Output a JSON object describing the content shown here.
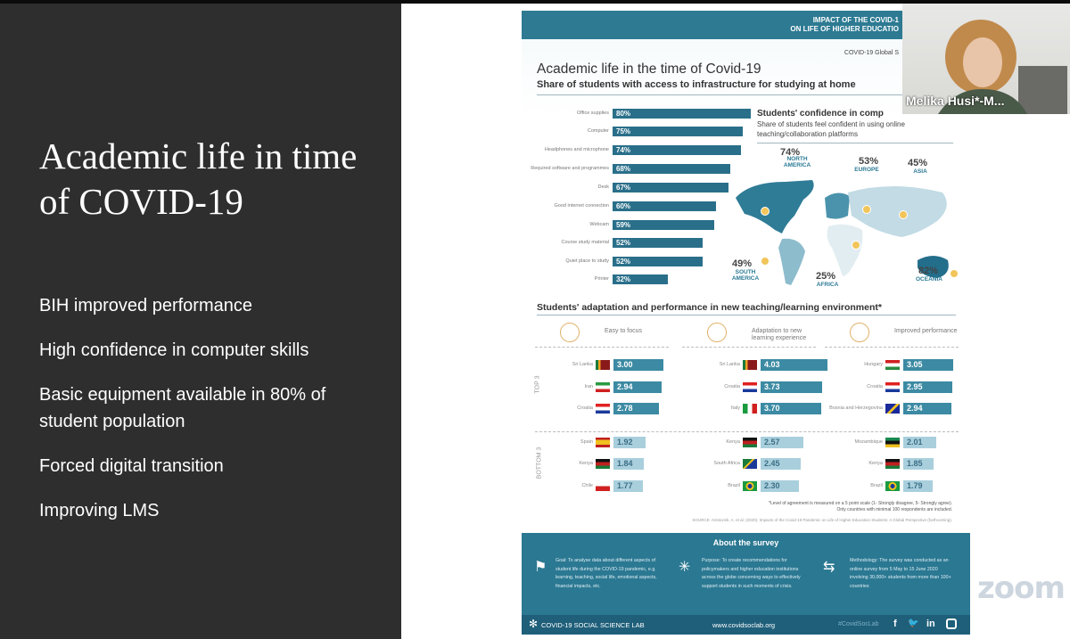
{
  "slide": {
    "title": "Academic life in time of COVID-19",
    "bullets": [
      "BIH improved performance",
      "High confidence in computer skills",
      "Basic equipment available in 80% of student population",
      "Forced digital transition",
      "Improving LMS"
    ]
  },
  "infographic": {
    "header_line1": "IMPACT OF THE COVID-1",
    "header_line2": "ON LIFE OF HIGHER EDUCATIO",
    "survey_tag": "COVID-19 Global S",
    "title": "Academic life in the time of Covid-19",
    "subtitle": "Share of students with access to infrastructure for studying at home",
    "bar_color": "#2a6f8a",
    "infrastructure": [
      {
        "label": "Office supplies",
        "value": 80
      },
      {
        "label": "Computer",
        "value": 75
      },
      {
        "label": "Headphones and microphone",
        "value": 74
      },
      {
        "label": "Required software and programmes",
        "value": 68
      },
      {
        "label": "Desk",
        "value": 67
      },
      {
        "label": "Good internet connection",
        "value": 60
      },
      {
        "label": "Webcam",
        "value": 59
      },
      {
        "label": "Course study material",
        "value": 52
      },
      {
        "label": "Quiet place to study",
        "value": 52
      },
      {
        "label": "Printer",
        "value": 32
      }
    ],
    "confidence_title": "Students' confidence in comp",
    "confidence_sub": "Share of students feel confident in using online teaching/collaboration platforms",
    "regions": [
      {
        "name": "NORTH AMERICA",
        "pct": "74%",
        "rank": "2"
      },
      {
        "name": "EUROPE",
        "pct": "53%",
        "rank": "3"
      },
      {
        "name": "ASIA",
        "pct": "45%",
        "rank": "5"
      },
      {
        "name": "SOUTH AMERICA",
        "pct": "49%",
        "rank": "4"
      },
      {
        "name": "AFRICA",
        "pct": "25%",
        "rank": "6"
      },
      {
        "name": "OCEANIA",
        "pct": "82%",
        "rank": "1"
      }
    ],
    "adapt_title": "Students' adaptation and performance in new teaching/learning environment*",
    "top_label": "TOP 3",
    "bottom_label": "BOTTOM 3",
    "columns": [
      {
        "title": "Easy to focus",
        "icon": "head-target-icon",
        "top": [
          {
            "country": "Sri Lanka",
            "value": "3.00"
          },
          {
            "country": "Iran",
            "value": "2.94"
          },
          {
            "country": "Croatia",
            "value": "2.78"
          }
        ],
        "bottom": [
          {
            "country": "Spain",
            "value": "1.92"
          },
          {
            "country": "Kenya",
            "value": "1.84"
          },
          {
            "country": "Chile",
            "value": "1.77"
          }
        ]
      },
      {
        "title": "Adaptation to new learning experience",
        "icon": "person-network-icon",
        "top": [
          {
            "country": "Sri Lanka",
            "value": "4.03"
          },
          {
            "country": "Croatia",
            "value": "3.73"
          },
          {
            "country": "Italy",
            "value": "3.70"
          }
        ],
        "bottom": [
          {
            "country": "Kenya",
            "value": "2.57"
          },
          {
            "country": "South Africa",
            "value": "2.45"
          },
          {
            "country": "Brazil",
            "value": "2.30"
          }
        ]
      },
      {
        "title": "Improved performance",
        "icon": "gauge-icon",
        "top": [
          {
            "country": "Hungary",
            "value": "3.05"
          },
          {
            "country": "Croatia",
            "value": "2.95"
          },
          {
            "country": "Bosnia and Herzegovina",
            "value": "2.94"
          }
        ],
        "bottom": [
          {
            "country": "Mozambique",
            "value": "2.01"
          },
          {
            "country": "Kenya",
            "value": "1.85"
          },
          {
            "country": "Brazil",
            "value": "1.79"
          }
        ]
      }
    ],
    "footnote1": "*Level of agreement is measured on a 5 point scale (1- Strongly disagree, 5- Strongly agree).",
    "footnote2": "Only countries with minimal 100 respondents are included.",
    "source": "SOURCE: Aristovnik, A. et al. (2020). Impacts of the Covid-19 Pandemic on Life of Higher Education Students: A Global Perspective (forthcoming).",
    "about_title": "About the survey",
    "about": [
      {
        "icon": "checkered-flag-icon",
        "text": "Goal: To analyse data about different aspects of student life during the COVID-19 pandemic, e.g. learning, teaching, social life, emotional aspects, financial impacts, etc."
      },
      {
        "icon": "network-icon",
        "text": "Purpose: To create recommendations for policymakers and higher education institutions across the globe concerning ways to effectively support students in such moments of crisis."
      },
      {
        "icon": "flow-icon",
        "text": "Methodology: The survey was conducted as an online survey from 5 May to 15 June 2020 involving 30,000+ students from more than 100+ countries"
      }
    ],
    "footer_brand": "COVID-19 SOCIAL SCIENCE LAB",
    "footer_url": "www.covidsoclab.org",
    "footer_hashtag": "#CovidSocLab"
  },
  "zoom_watermark": "zoom",
  "video": {
    "participant_name": "Melika Husi*-M..."
  }
}
